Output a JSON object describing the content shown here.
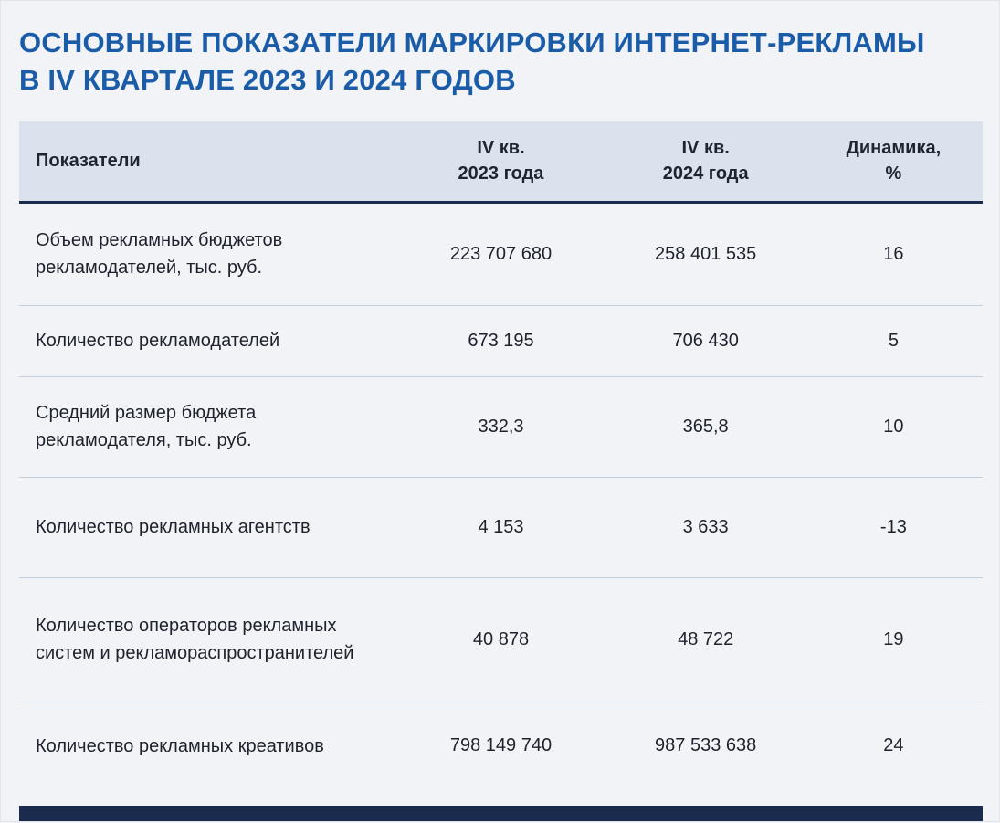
{
  "title": {
    "line1": "ОСНОВНЫЕ ПОКАЗАТЕЛИ МАРКИРОВКИ ИНТЕРНЕТ-РЕКЛАМЫ",
    "line2": "В IV КВАРТАЛЕ 2023 И 2024 ГОДОВ"
  },
  "colors": {
    "title_blue": "#1a5ca8",
    "header_bg": "#dbe2ee",
    "page_bg": "#f1f3f7",
    "dark_navy": "#1b2b4d",
    "row_divider": "#c3cfdf"
  },
  "chart_data": {
    "type": "table",
    "title": "Основные показатели маркировки интернет-рекламы в IV квартале 2023 и 2024 годов",
    "columns": [
      {
        "key": "indicator",
        "line1": "Показатели",
        "line2": ""
      },
      {
        "key": "q4_2023",
        "line1": "IV кв.",
        "line2": "2023 года"
      },
      {
        "key": "q4_2024",
        "line1": "IV кв.",
        "line2": "2024 года"
      },
      {
        "key": "dynamics_pct",
        "line1": "Динамика,",
        "line2": "%"
      }
    ],
    "rows": [
      {
        "indicator": "Объем рекламных бюджетов рекламодателей, тыс. руб.",
        "q4_2023": "223 707 680",
        "q4_2024": "258 401 535",
        "dynamics_pct": "16"
      },
      {
        "indicator": "Количество рекламодателей",
        "q4_2023": "673 195",
        "q4_2024": "706 430",
        "dynamics_pct": "5"
      },
      {
        "indicator": "Средний размер бюджета рекламодателя, тыс. руб.",
        "q4_2023": "332,3",
        "q4_2024": "365,8",
        "dynamics_pct": "10"
      },
      {
        "indicator": "Количество рекламных агентств",
        "q4_2023": "4 153",
        "q4_2024": "3 633",
        "dynamics_pct": "-13"
      },
      {
        "indicator": "Количество операторов рекламных систем и рекламораспространителей",
        "q4_2023": "40 878",
        "q4_2024": "48 722",
        "dynamics_pct": "19"
      },
      {
        "indicator": "Количество рекламных креативов",
        "q4_2023": "798 149 740",
        "q4_2024": "987 533 638",
        "dynamics_pct": "24"
      }
    ]
  }
}
